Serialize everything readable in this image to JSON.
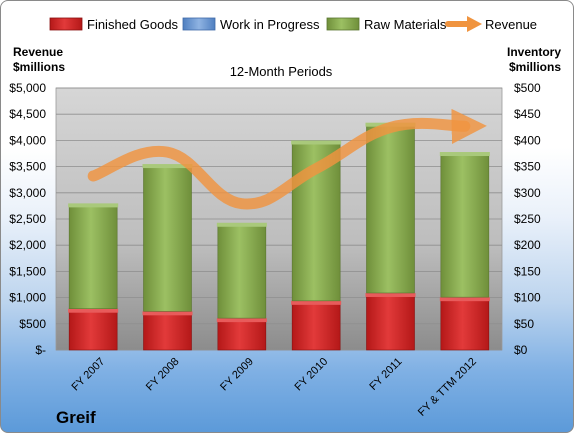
{
  "company": "Greif",
  "subtitle": "12-Month Periods",
  "left_axis_title": [
    "Revenue",
    "$millions"
  ],
  "right_axis_title": [
    "Inventory",
    "$millions"
  ],
  "legend": [
    {
      "label": "Finished Goods",
      "color": "#d42a2a"
    },
    {
      "label": "Work in Progress",
      "color": "#6f9bd4"
    },
    {
      "label": "Raw Materials",
      "color": "#8db056"
    },
    {
      "label": "Revenue",
      "color": "#f29438"
    }
  ],
  "chart_data": {
    "type": "bar",
    "stacked": true,
    "title": "12-Month Periods",
    "categories": [
      "FY 2007",
      "FY 2008",
      "FY 2009",
      "FY 2010",
      "FY 2011",
      "FY & TTM 2012"
    ],
    "series": [
      {
        "name": "Finished Goods",
        "axis": "right",
        "values": [
          75,
          70,
          57,
          90,
          105,
          97
        ]
      },
      {
        "name": "Work in Progress",
        "axis": "right",
        "values": [
          0,
          0,
          0,
          0,
          0,
          0
        ]
      },
      {
        "name": "Raw Materials",
        "axis": "right",
        "values": [
          201,
          281,
          182,
          306,
          325,
          277
        ]
      },
      {
        "name": "Revenue",
        "axis": "left",
        "type": "line",
        "values": [
          3320,
          3776,
          2792,
          3462,
          4248,
          4270
        ]
      }
    ],
    "left_axis": {
      "label": "Revenue $millions",
      "ylim": [
        0,
        5000
      ],
      "ticks": [
        "$-",
        "$500",
        "$1,000",
        "$1,500",
        "$2,000",
        "$2,500",
        "$3,000",
        "$3,500",
        "$4,000",
        "$4,500",
        "$5,000"
      ]
    },
    "right_axis": {
      "label": "Inventory $millions",
      "ylim": [
        0,
        500
      ],
      "ticks": [
        "$0",
        "$50",
        "$100",
        "$150",
        "$200",
        "$250",
        "$300",
        "$350",
        "$400",
        "$450",
        "$500"
      ]
    },
    "grid": true,
    "legend_position": "top"
  }
}
